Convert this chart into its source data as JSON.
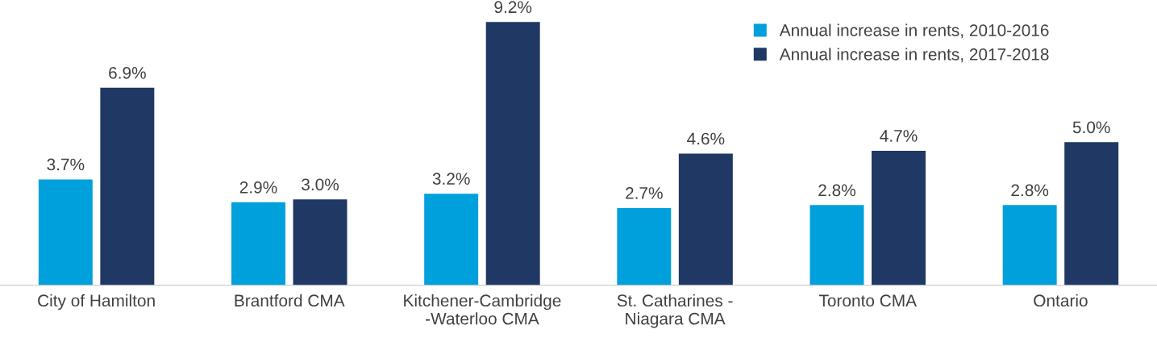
{
  "chart_data": {
    "type": "bar",
    "categories": [
      "City of Hamilton",
      "Brantford CMA",
      "Kitchener-Cambridge\n-Waterloo CMA",
      "St. Catharines -\nNiagara CMA",
      "Toronto CMA",
      "Ontario"
    ],
    "series": [
      {
        "name": "Annual increase in rents, 2010-2016",
        "color": "#00a0dc",
        "values": [
          3.7,
          2.9,
          3.2,
          2.7,
          2.8,
          2.8
        ],
        "value_labels": [
          "3.7%",
          "2.9%",
          "3.2%",
          "2.7%",
          "2.8%",
          "2.8%"
        ]
      },
      {
        "name": "Annual increase in rents, 2017-2018",
        "color": "#1f3864",
        "values": [
          6.9,
          3.0,
          9.2,
          4.6,
          4.7,
          5.0
        ],
        "value_labels": [
          "6.9%",
          "3.0%",
          "9.2%",
          "4.6%",
          "4.7%",
          "5.0%"
        ]
      }
    ],
    "legend": "top right",
    "grid": false,
    "tick_labels": "x"
  }
}
